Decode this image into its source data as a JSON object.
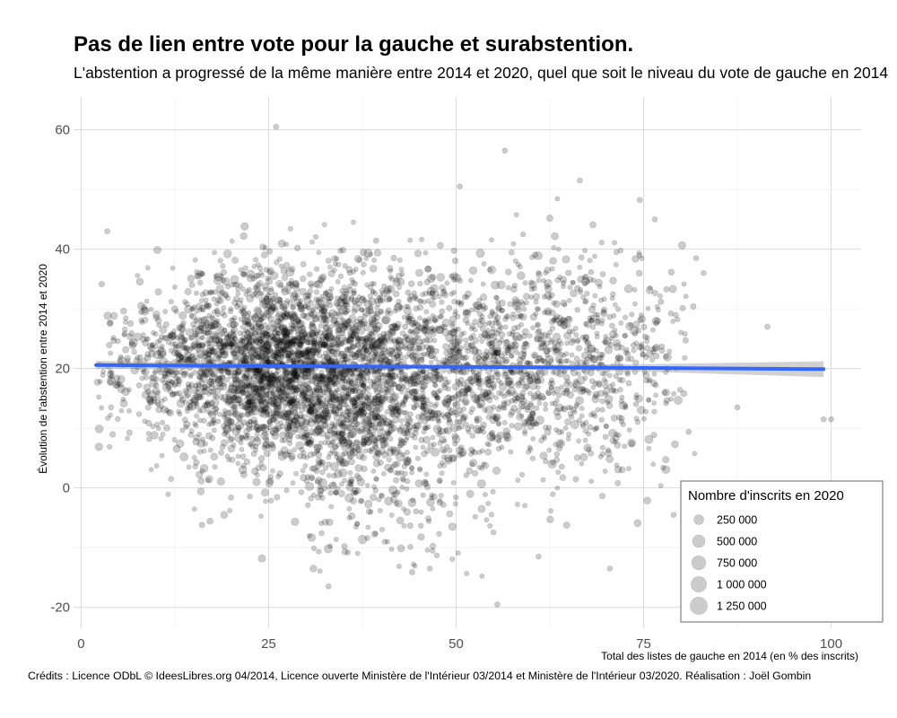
{
  "chart_data": {
    "type": "scatter",
    "title": "Pas de lien entre vote pour la gauche et surabstention.",
    "subtitle": "L'abstention a progressé de la même manière entre 2014 et 2020, quel que soit le niveau du vote de gauche en 2014",
    "xlabel": "Total des listes de gauche en 2014 (en % des inscrits)",
    "ylabel": "Évolution de l'abstention entre 2014 et 2020",
    "caption": "Crédits : Licence ODbL © IdeesLibres.org 04/2014, Licence ouverte Ministère de l'Intérieur 03/2014 et Ministère de l'Intérieur 03/2020. Réalisation : Joël Gombin",
    "xlim": [
      -1,
      104
    ],
    "ylim": [
      -23.5,
      65.5
    ],
    "x_ticks": [
      "0",
      "25",
      "50",
      "75",
      "100"
    ],
    "x_tick_values": [
      0,
      25,
      50,
      75,
      100
    ],
    "y_ticks": [
      "-20",
      "0",
      "20",
      "40",
      "60"
    ],
    "y_tick_values": [
      -20,
      0,
      20,
      40,
      60
    ],
    "grid": true,
    "legend": {
      "title": "Nombre d'inscrits en 2020",
      "position": "bottom-right",
      "entries": [
        "250 000",
        "500 000",
        "750 000",
        "1 000 000",
        "1 250 000"
      ],
      "values": [
        250000,
        500000,
        750000,
        1000000,
        1250000
      ]
    },
    "point_color": "#000000",
    "point_alpha": 0.2,
    "trend_color": "#3366FF",
    "trend_band_color": "#999999",
    "trend": {
      "x": [
        2,
        25,
        50,
        75,
        99
      ],
      "y": [
        20.6,
        20.4,
        20.3,
        20.1,
        19.9
      ]
    },
    "notable_points": {
      "x": [
        26,
        56.5,
        50.5,
        66.5,
        99,
        91.5,
        87.5,
        70.5,
        61,
        55.5,
        33,
        3.5,
        4,
        79,
        82,
        83,
        76.5,
        12,
        100,
        40.5,
        46.5
      ],
      "y": [
        60.5,
        56.5,
        50.5,
        51.5,
        11.5,
        27,
        13.5,
        -13.5,
        -11.5,
        -19.5,
        -16.5,
        43,
        13.5,
        -4.5,
        38.5,
        36,
        45,
        1.5,
        11.5,
        -9,
        -13.5
      ]
    },
    "cloud_estimate": {
      "points_count": 5000,
      "core_x_range": [
        10,
        60
      ],
      "core_y_range": [
        5,
        35
      ],
      "x_range": [
        2,
        100
      ],
      "y_range": [
        -20,
        61
      ]
    }
  }
}
